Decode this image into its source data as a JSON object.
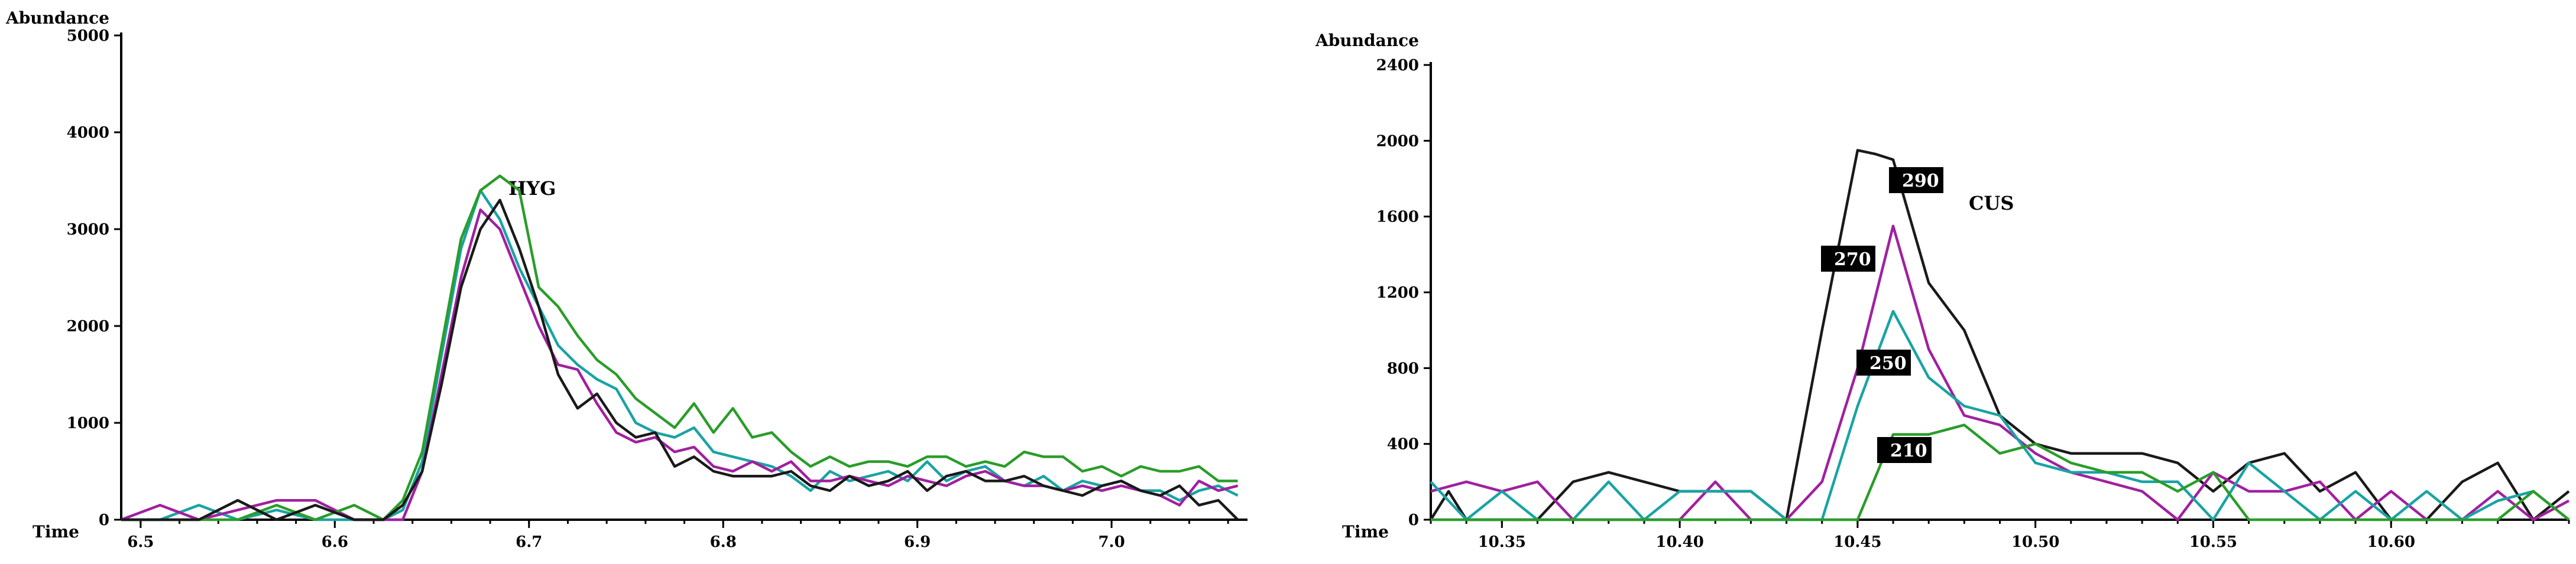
{
  "chart_data": [
    {
      "type": "line",
      "title": "",
      "annotation": "HYG",
      "ylabel": "Abundance",
      "xlabel": "Time",
      "xlim": [
        6.49,
        7.07
      ],
      "ylim": [
        0,
        5000
      ],
      "x_ticks": [
        6.5,
        6.6,
        6.7,
        6.8,
        6.9,
        7.0
      ],
      "x_tick_labels": [
        "6.5",
        "6.6",
        "6.7",
        "6.8",
        "6.9",
        "7.0"
      ],
      "y_ticks": [
        0,
        1000,
        2000,
        3000,
        4000,
        5000
      ],
      "y_tick_labels": [
        "0",
        "1000",
        "2000",
        "3000",
        "4000",
        "5000"
      ],
      "series": [
        {
          "color": "#1aa3a3",
          "x": [
            6.49,
            6.51,
            6.53,
            6.55,
            6.57,
            6.59,
            6.61,
            6.625,
            6.635,
            6.645,
            6.655,
            6.665,
            6.675,
            6.685,
            6.695,
            6.705,
            6.715,
            6.725,
            6.735,
            6.745,
            6.755,
            6.765,
            6.775,
            6.785,
            6.795,
            6.805,
            6.815,
            6.825,
            6.835,
            6.845,
            6.855,
            6.865,
            6.875,
            6.885,
            6.895,
            6.905,
            6.915,
            6.925,
            6.935,
            6.945,
            6.955,
            6.965,
            6.975,
            6.985,
            6.995,
            7.005,
            7.015,
            7.025,
            7.035,
            7.045,
            7.055,
            7.065
          ],
          "y": [
            0,
            0,
            150,
            0,
            100,
            0,
            0,
            0,
            100,
            600,
            1700,
            2800,
            3400,
            3100,
            2600,
            2200,
            1800,
            1600,
            1450,
            1350,
            1000,
            900,
            850,
            950,
            700,
            650,
            600,
            550,
            450,
            300,
            500,
            400,
            450,
            500,
            400,
            600,
            400,
            500,
            550,
            400,
            350,
            450,
            300,
            400,
            350,
            400,
            300,
            300,
            200,
            300,
            350,
            250
          ]
        },
        {
          "color": "#a020a0",
          "x": [
            6.49,
            6.51,
            6.53,
            6.55,
            6.57,
            6.59,
            6.61,
            6.625,
            6.635,
            6.645,
            6.655,
            6.665,
            6.675,
            6.685,
            6.695,
            6.705,
            6.715,
            6.725,
            6.735,
            6.745,
            6.755,
            6.765,
            6.775,
            6.785,
            6.795,
            6.805,
            6.815,
            6.825,
            6.835,
            6.845,
            6.855,
            6.865,
            6.875,
            6.885,
            6.895,
            6.905,
            6.915,
            6.925,
            6.935,
            6.945,
            6.955,
            6.965,
            6.975,
            6.985,
            6.995,
            7.005,
            7.015,
            7.025,
            7.035,
            7.045,
            7.055,
            7.065
          ],
          "y": [
            0,
            150,
            0,
            100,
            200,
            200,
            0,
            0,
            0,
            500,
            1500,
            2500,
            3200,
            3000,
            2500,
            2000,
            1600,
            1550,
            1200,
            900,
            800,
            850,
            700,
            750,
            550,
            500,
            600,
            500,
            600,
            400,
            400,
            450,
            400,
            350,
            450,
            400,
            350,
            450,
            500,
            400,
            350,
            350,
            300,
            350,
            300,
            350,
            300,
            250,
            150,
            400,
            300,
            350
          ]
        },
        {
          "color": "#2a9d2a",
          "x": [
            6.49,
            6.51,
            6.53,
            6.55,
            6.57,
            6.59,
            6.61,
            6.625,
            6.635,
            6.645,
            6.655,
            6.665,
            6.675,
            6.685,
            6.695,
            6.705,
            6.715,
            6.725,
            6.735,
            6.745,
            6.755,
            6.765,
            6.775,
            6.785,
            6.795,
            6.805,
            6.815,
            6.825,
            6.835,
            6.845,
            6.855,
            6.865,
            6.875,
            6.885,
            6.895,
            6.905,
            6.915,
            6.925,
            6.935,
            6.945,
            6.955,
            6.965,
            6.975,
            6.985,
            6.995,
            7.005,
            7.015,
            7.025,
            7.035,
            7.045,
            7.055,
            7.065
          ],
          "y": [
            0,
            0,
            0,
            0,
            150,
            0,
            150,
            0,
            200,
            700,
            1800,
            2900,
            3400,
            3550,
            3400,
            2400,
            2200,
            1900,
            1650,
            1500,
            1250,
            1100,
            950,
            1200,
            900,
            1150,
            850,
            900,
            700,
            550,
            650,
            550,
            600,
            600,
            550,
            650,
            650,
            550,
            600,
            550,
            700,
            650,
            650,
            500,
            550,
            450,
            550,
            500,
            500,
            550,
            400,
            400
          ]
        },
        {
          "color": "#1a1a1a",
          "x": [
            6.49,
            6.51,
            6.53,
            6.55,
            6.57,
            6.59,
            6.61,
            6.625,
            6.635,
            6.645,
            6.655,
            6.665,
            6.675,
            6.685,
            6.695,
            6.705,
            6.715,
            6.725,
            6.735,
            6.745,
            6.755,
            6.765,
            6.775,
            6.785,
            6.795,
            6.805,
            6.815,
            6.825,
            6.835,
            6.845,
            6.855,
            6.865,
            6.875,
            6.885,
            6.895,
            6.905,
            6.915,
            6.925,
            6.935,
            6.945,
            6.955,
            6.965,
            6.975,
            6.985,
            6.995,
            7.005,
            7.015,
            7.025,
            7.035,
            7.045,
            7.055,
            7.065
          ],
          "y": [
            0,
            0,
            0,
            200,
            0,
            150,
            0,
            0,
            150,
            500,
            1400,
            2400,
            3000,
            3300,
            2800,
            2200,
            1500,
            1150,
            1300,
            1000,
            850,
            900,
            550,
            650,
            500,
            450,
            450,
            450,
            500,
            350,
            300,
            450,
            350,
            400,
            500,
            300,
            450,
            500,
            400,
            400,
            450,
            350,
            300,
            250,
            350,
            400,
            300,
            250,
            350,
            150,
            200,
            0
          ]
        }
      ]
    },
    {
      "type": "line",
      "title": "",
      "annotation": "CUS",
      "ylabel": "Abundance",
      "xlabel": "Time",
      "xlim": [
        10.33,
        10.65
      ],
      "ylim": [
        0,
        2400
      ],
      "x_ticks": [
        10.35,
        10.4,
        10.45,
        10.5,
        10.55,
        10.6
      ],
      "x_tick_labels": [
        "10.35",
        "10.40",
        "10.45",
        "10.50",
        "10.55",
        "10.60"
      ],
      "y_ticks": [
        0,
        400,
        800,
        1200,
        1600,
        2000,
        2400
      ],
      "y_tick_labels": [
        "0",
        "400",
        "800",
        "1200",
        "1600",
        "2000",
        "2400"
      ],
      "series": [
        {
          "name": "290",
          "color": "#1a1a1a",
          "x": [
            10.33,
            10.335,
            10.34,
            10.35,
            10.36,
            10.37,
            10.38,
            10.39,
            10.4,
            10.41,
            10.42,
            10.43,
            10.44,
            10.45,
            10.455,
            10.46,
            10.47,
            10.48,
            10.49,
            10.5,
            10.51,
            10.52,
            10.53,
            10.54,
            10.55,
            10.56,
            10.57,
            10.58,
            10.59,
            10.6,
            10.61,
            10.62,
            10.63,
            10.64,
            10.65
          ],
          "y": [
            0,
            150,
            0,
            0,
            0,
            200,
            250,
            200,
            150,
            150,
            150,
            0,
            1000,
            1950,
            1930,
            1900,
            1250,
            1000,
            550,
            400,
            350,
            350,
            350,
            300,
            150,
            300,
            350,
            150,
            250,
            0,
            0,
            200,
            300,
            0,
            150
          ]
        },
        {
          "name": "270",
          "color": "#a020a0",
          "x": [
            10.33,
            10.34,
            10.35,
            10.36,
            10.37,
            10.38,
            10.39,
            10.4,
            10.41,
            10.42,
            10.43,
            10.44,
            10.45,
            10.46,
            10.47,
            10.48,
            10.49,
            10.5,
            10.51,
            10.52,
            10.53,
            10.54,
            10.55,
            10.56,
            10.57,
            10.58,
            10.59,
            10.6,
            10.61,
            10.62,
            10.63,
            10.64,
            10.65
          ],
          "y": [
            150,
            200,
            150,
            200,
            0,
            0,
            0,
            0,
            200,
            0,
            0,
            200,
            800,
            1550,
            900,
            550,
            500,
            350,
            250,
            200,
            150,
            0,
            250,
            150,
            150,
            200,
            0,
            150,
            0,
            0,
            150,
            0,
            100
          ]
        },
        {
          "name": "250",
          "color": "#1aa3a3",
          "x": [
            10.33,
            10.34,
            10.35,
            10.36,
            10.37,
            10.38,
            10.39,
            10.4,
            10.41,
            10.42,
            10.43,
            10.44,
            10.45,
            10.46,
            10.47,
            10.48,
            10.49,
            10.5,
            10.51,
            10.52,
            10.53,
            10.54,
            10.55,
            10.56,
            10.57,
            10.58,
            10.59,
            10.6,
            10.61,
            10.62,
            10.63,
            10.64,
            10.65
          ],
          "y": [
            200,
            0,
            150,
            0,
            0,
            200,
            0,
            150,
            150,
            150,
            0,
            0,
            600,
            1100,
            750,
            600,
            550,
            300,
            250,
            250,
            200,
            200,
            0,
            300,
            150,
            0,
            150,
            0,
            150,
            0,
            100,
            150,
            0
          ]
        },
        {
          "name": "210",
          "color": "#2a9d2a",
          "x": [
            10.33,
            10.34,
            10.35,
            10.36,
            10.37,
            10.38,
            10.39,
            10.4,
            10.41,
            10.42,
            10.43,
            10.44,
            10.45,
            10.46,
            10.47,
            10.48,
            10.49,
            10.5,
            10.51,
            10.52,
            10.53,
            10.54,
            10.55,
            10.56,
            10.57,
            10.58,
            10.59,
            10.6,
            10.61,
            10.62,
            10.63,
            10.64,
            10.65
          ],
          "y": [
            0,
            0,
            0,
            0,
            0,
            0,
            0,
            0,
            0,
            0,
            0,
            0,
            0,
            450,
            450,
            500,
            350,
            400,
            300,
            250,
            250,
            150,
            250,
            0,
            0,
            0,
            0,
            0,
            0,
            0,
            0,
            150,
            0
          ]
        }
      ]
    }
  ]
}
